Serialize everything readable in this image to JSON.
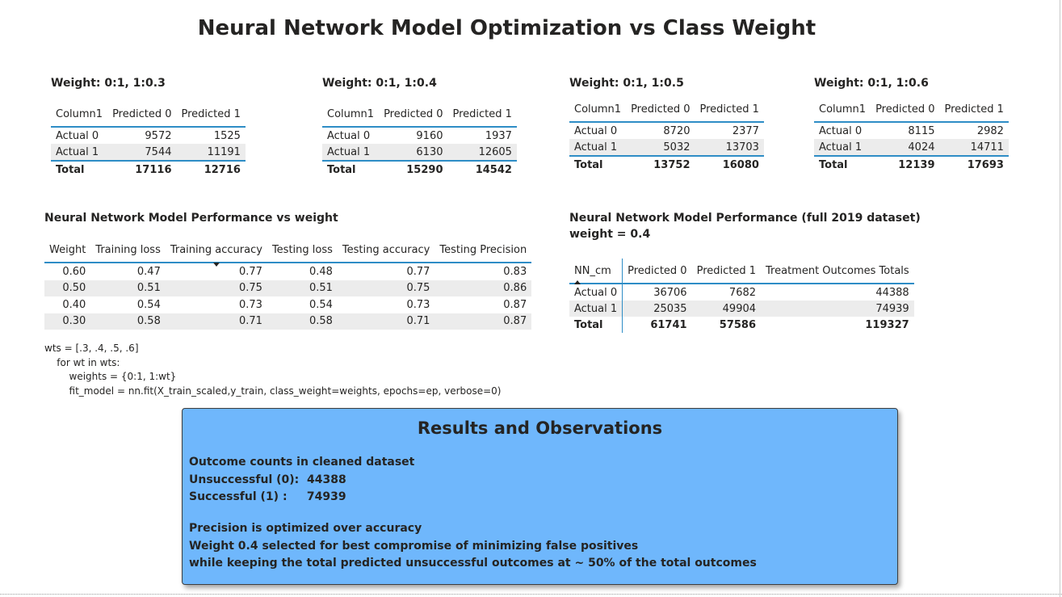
{
  "title": "Neural Network Model Optimization vs Class Weight",
  "matrices": [
    {
      "title": "Weight: 0:1, 1:0.3",
      "columns": [
        "Column1",
        "Predicted 0",
        "Predicted 1"
      ],
      "rows": [
        {
          "label": "Actual 0",
          "p0": "9572",
          "p1": "1525"
        },
        {
          "label": "Actual 1",
          "p0": "7544",
          "p1": "11191"
        }
      ],
      "total": {
        "label": "Total",
        "p0": "17116",
        "p1": "12716"
      }
    },
    {
      "title": "Weight: 0:1, 1:0.4",
      "columns": [
        "Column1",
        "Predicted 0",
        "Predicted 1"
      ],
      "rows": [
        {
          "label": "Actual 0",
          "p0": "9160",
          "p1": "1937"
        },
        {
          "label": "Actual 1",
          "p0": "6130",
          "p1": "12605"
        }
      ],
      "total": {
        "label": "Total",
        "p0": "15290",
        "p1": "14542"
      }
    },
    {
      "title": "Weight: 0:1, 1:0.5",
      "columns": [
        "Column1",
        "Predicted 0",
        "Predicted 1"
      ],
      "rows": [
        {
          "label": "Actual 0",
          "p0": "8720",
          "p1": "2377"
        },
        {
          "label": "Actual 1",
          "p0": "5032",
          "p1": "13703"
        }
      ],
      "total": {
        "label": "Total",
        "p0": "13752",
        "p1": "16080"
      }
    },
    {
      "title": "Weight: 0:1, 1:0.6",
      "columns": [
        "Column1",
        "Predicted 0",
        "Predicted 1"
      ],
      "rows": [
        {
          "label": "Actual 0",
          "p0": "8115",
          "p1": "2982"
        },
        {
          "label": "Actual 1",
          "p0": "4024",
          "p1": "14711"
        }
      ],
      "total": {
        "label": "Total",
        "p0": "12139",
        "p1": "17693"
      }
    }
  ],
  "performance": {
    "title": "Neural Network Model Performance vs weight",
    "columns": [
      "Weight",
      "Training loss",
      "Training accuracy",
      "Testing loss",
      "Testing accuracy",
      "Testing Precision"
    ],
    "sorted_column": "Training accuracy",
    "rows": [
      [
        "0.60",
        "0.47",
        "0.77",
        "0.48",
        "0.77",
        "0.83"
      ],
      [
        "0.50",
        "0.51",
        "0.75",
        "0.51",
        "0.75",
        "0.86"
      ],
      [
        "0.40",
        "0.54",
        "0.73",
        "0.54",
        "0.73",
        "0.87"
      ],
      [
        "0.30",
        "0.58",
        "0.71",
        "0.58",
        "0.71",
        "0.87"
      ]
    ]
  },
  "full_dataset": {
    "title": "Neural Network Model Performance (full 2019 dataset)",
    "subtitle": "weight = 0.4",
    "columns": [
      "NN_cm",
      "Predicted 0",
      "Predicted 1",
      "Treatment Outcomes Totals"
    ],
    "sorted_column": "NN_cm",
    "rows": [
      {
        "label": "Actual 0",
        "p0": "36706",
        "p1": "7682",
        "tot": "44388"
      },
      {
        "label": "Actual 1",
        "p0": "25035",
        "p1": "49904",
        "tot": "74939"
      }
    ],
    "total": {
      "label": "Total",
      "p0": "61741",
      "p1": "57586",
      "tot": "119327"
    }
  },
  "code_lines": [
    "wts = [.3, .4, .5, .6]",
    "    for wt in wts:",
    "        weights = {0:1, 1:wt}",
    "        fit_model = nn.fit(X_train_scaled,y_train, class_weight=weights, epochs=ep, verbose=0)"
  ],
  "results": {
    "title": "Results and Observations",
    "lines": [
      "Outcome counts in cleaned dataset",
      "Unsuccessful (0):  44388",
      "Successful (1) :     74939",
      "Precision is optimized over accuracy",
      "Weight 0.4 selected for best compromise of minimizing false positives",
      "while keeping the total predicted unsuccessful outcomes at ~ 50% of the total outcomes"
    ],
    "background_color": "#6fb7fc"
  },
  "colors": {
    "accent": "#2e8dc6",
    "row_band": "#ececec",
    "text": "#252423"
  }
}
